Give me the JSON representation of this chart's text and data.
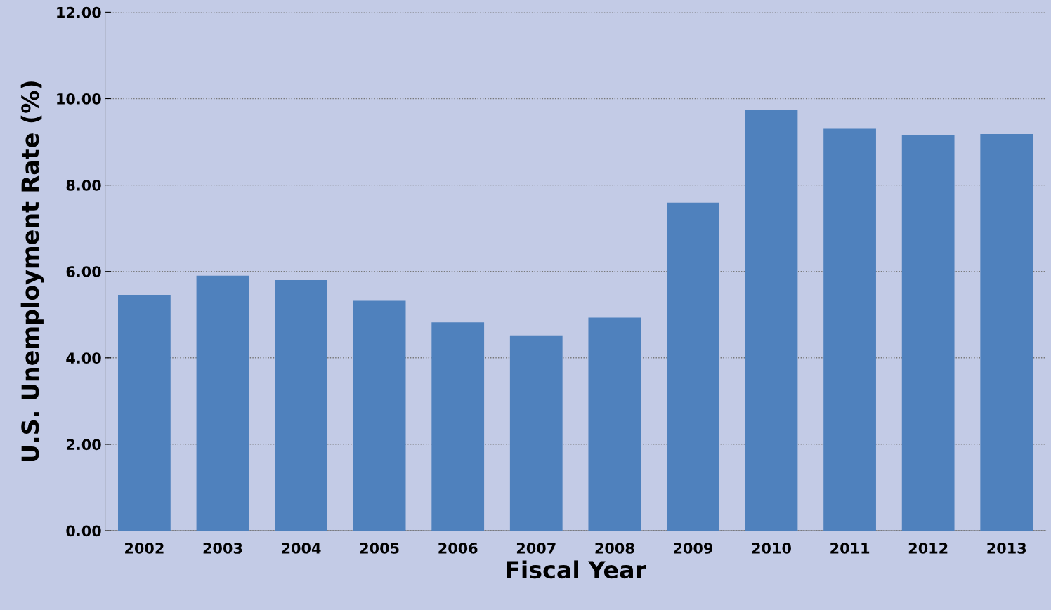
{
  "chart_data": {
    "type": "bar",
    "xlabel": "Fiscal Year",
    "ylabel": "U.S. Unemployment Rate (%)",
    "categories": [
      "2002",
      "2003",
      "2004",
      "2005",
      "2006",
      "2007",
      "2008",
      "2009",
      "2010",
      "2011",
      "2012",
      "2013"
    ],
    "values": [
      5.46,
      5.9,
      5.8,
      5.32,
      4.82,
      4.52,
      4.93,
      7.59,
      9.74,
      9.3,
      9.16,
      9.18
    ],
    "color": "#4f81bd",
    "ylim": [
      0,
      12
    ],
    "yticks": [
      {
        "value": 0,
        "label": "0.00"
      },
      {
        "value": 2,
        "label": "2.00"
      },
      {
        "value": 4,
        "label": "4.00"
      },
      {
        "value": 6,
        "label": "6.00"
      },
      {
        "value": 8,
        "label": "8.00"
      },
      {
        "value": 10,
        "label": "10.00"
      },
      {
        "value": 12,
        "label": "12.00"
      }
    ],
    "grid": "y",
    "legend": false
  }
}
